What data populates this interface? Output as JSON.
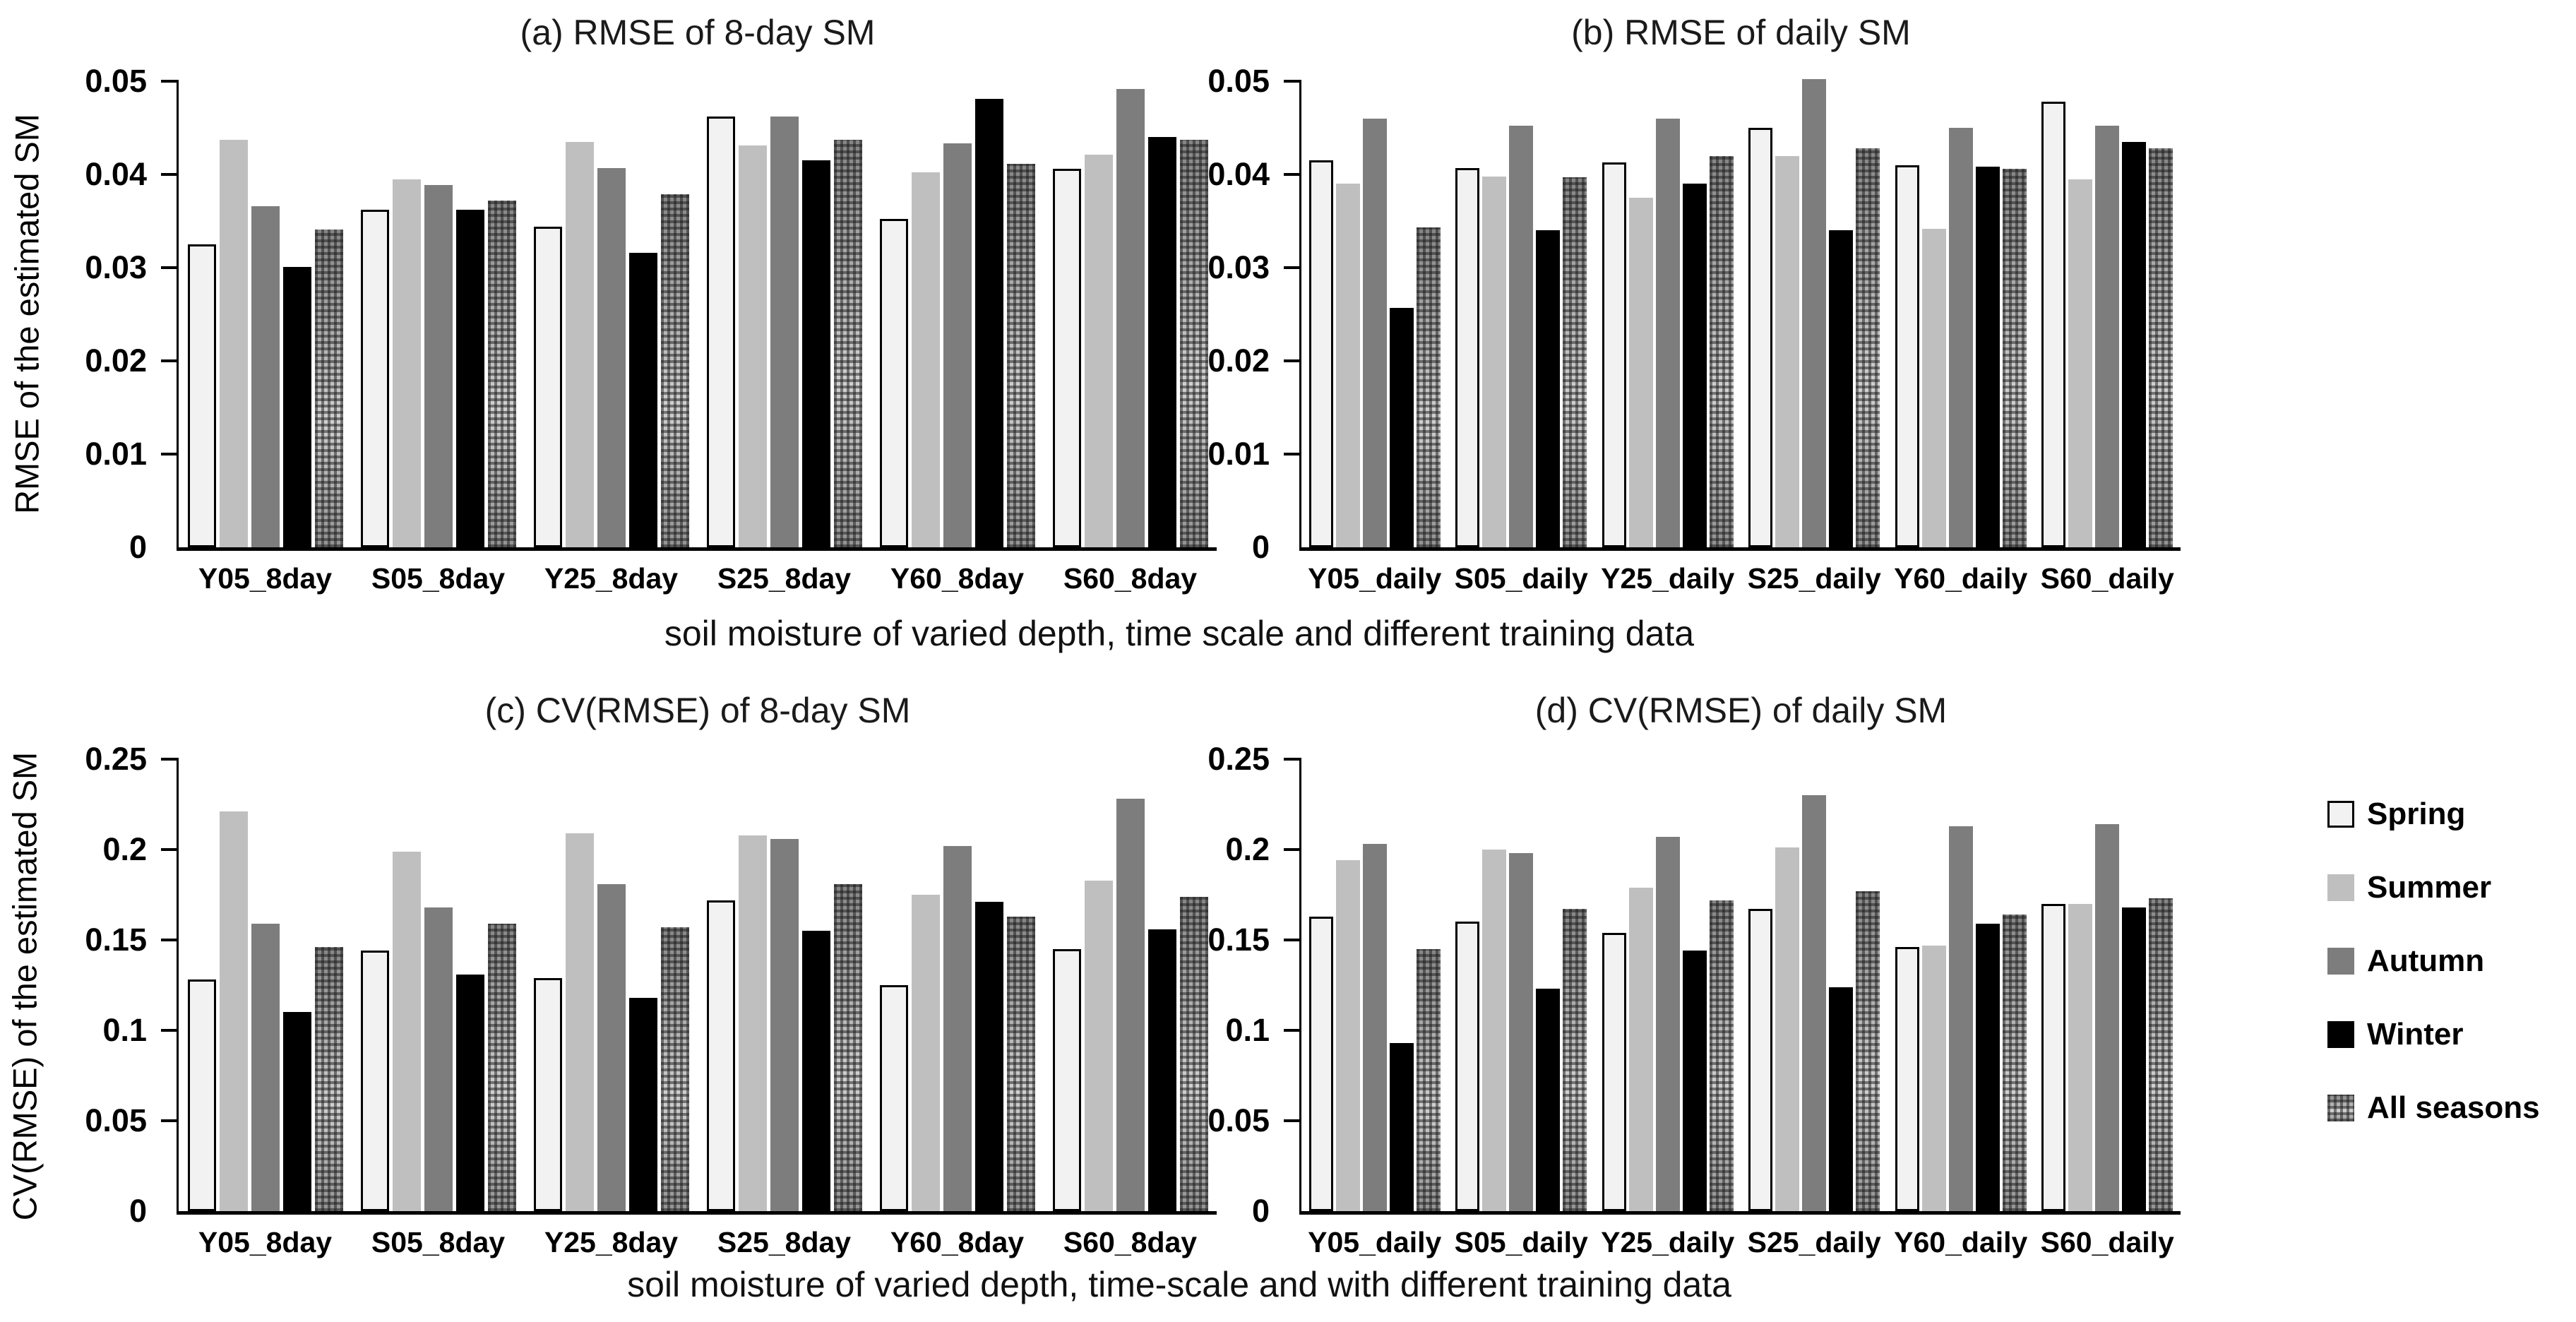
{
  "figure": {
    "top_caption": "soil moisture of varied depth, time scale and different training data",
    "bottom_caption": "soil moisture of varied depth,  time-scale and with different training data"
  },
  "legend": {
    "position": "right",
    "items": [
      {
        "label": "Spring",
        "style": "spring",
        "color": "#f2f2f2"
      },
      {
        "label": "Summer",
        "style": "summer",
        "color": "#bfbfbf"
      },
      {
        "label": "Autumn",
        "style": "autumn",
        "color": "#7d7d7d"
      },
      {
        "label": "Winter",
        "style": "winter",
        "color": "#000000"
      },
      {
        "label": "All seasons",
        "style": "allseasons",
        "color": "#9a9a9a-checkered"
      }
    ]
  },
  "chart_data": [
    {
      "id": "a",
      "type": "bar",
      "title": "(a)  RMSE of 8-day SM",
      "ylabel": "RMSE of the estimated SM",
      "xlabel": "",
      "ylim": [
        0,
        0.05
      ],
      "grid": false,
      "yticks": [
        "0.05",
        "0.04",
        "0.03",
        "0.02",
        "0.01",
        "0"
      ],
      "categories": [
        "Y05_8day",
        "S05_8day",
        "Y25_8day",
        "S25_8day",
        "Y60_8day",
        "S60_8day"
      ],
      "series": [
        {
          "name": "Spring",
          "values": [
            0.0325,
            0.0362,
            0.0344,
            0.0462,
            0.0352,
            0.0406
          ]
        },
        {
          "name": "Summer",
          "values": [
            0.0437,
            0.0395,
            0.0435,
            0.0431,
            0.0402,
            0.0421
          ]
        },
        {
          "name": "Autumn",
          "values": [
            0.0366,
            0.0389,
            0.0407,
            0.0462,
            0.0433,
            0.0492
          ]
        },
        {
          "name": "Winter",
          "values": [
            0.0301,
            0.0362,
            0.0316,
            0.0415,
            0.0481,
            0.044
          ]
        },
        {
          "name": "All seasons",
          "values": [
            0.0341,
            0.0372,
            0.0379,
            0.0437,
            0.0411,
            0.0437
          ]
        }
      ]
    },
    {
      "id": "b",
      "type": "bar",
      "title": "(b)  RMSE of daily SM",
      "ylabel": "",
      "xlabel": "",
      "ylim": [
        0,
        0.05
      ],
      "grid": false,
      "yticks": [
        "0.05",
        "0.04",
        "0.03",
        "0.02",
        "0.01",
        "0"
      ],
      "categories": [
        "Y05_daily",
        "S05_daily",
        "Y25_daily",
        "S25_daily",
        "Y60_daily",
        "S60_daily"
      ],
      "series": [
        {
          "name": "Spring",
          "values": [
            0.0415,
            0.0407,
            0.0413,
            0.045,
            0.041,
            0.0478
          ]
        },
        {
          "name": "Summer",
          "values": [
            0.039,
            0.0398,
            0.0375,
            0.042,
            0.0342,
            0.0395
          ]
        },
        {
          "name": "Autumn",
          "values": [
            0.046,
            0.0452,
            0.046,
            0.0502,
            0.045,
            0.0452
          ]
        },
        {
          "name": "Winter",
          "values": [
            0.0257,
            0.034,
            0.039,
            0.034,
            0.0408,
            0.0435
          ]
        },
        {
          "name": "All seasons",
          "values": [
            0.0343,
            0.0397,
            0.042,
            0.0428,
            0.0406,
            0.0428
          ]
        }
      ]
    },
    {
      "id": "c",
      "type": "bar",
      "title": "(c)  CV(RMSE) of 8-day SM",
      "ylabel": "CV(RMSE) of the estimated SM",
      "xlabel": "",
      "ylim": [
        0,
        0.25
      ],
      "grid": false,
      "yticks": [
        "0.25",
        "0.2",
        "0.15",
        "0.1",
        "0.05",
        "0"
      ],
      "categories": [
        "Y05_8day",
        "S05_8day",
        "Y25_8day",
        "S25_8day",
        "Y60_8day",
        "S60_8day"
      ],
      "series": [
        {
          "name": "Spring",
          "values": [
            0.128,
            0.144,
            0.129,
            0.172,
            0.125,
            0.145
          ]
        },
        {
          "name": "Summer",
          "values": [
            0.221,
            0.199,
            0.209,
            0.208,
            0.175,
            0.183
          ]
        },
        {
          "name": "Autumn",
          "values": [
            0.159,
            0.168,
            0.181,
            0.206,
            0.202,
            0.228
          ]
        },
        {
          "name": "Winter",
          "values": [
            0.11,
            0.131,
            0.118,
            0.155,
            0.171,
            0.156
          ]
        },
        {
          "name": "All seasons",
          "values": [
            0.146,
            0.159,
            0.157,
            0.181,
            0.163,
            0.174
          ]
        }
      ]
    },
    {
      "id": "d",
      "type": "bar",
      "title": "(d)  CV(RMSE) of daily SM",
      "ylabel": "",
      "xlabel": "",
      "ylim": [
        0,
        0.25
      ],
      "grid": false,
      "yticks": [
        "0.25",
        "0.2",
        "0.15",
        "0.1",
        "0.05",
        "0"
      ],
      "categories": [
        "Y05_daily",
        "S05_daily",
        "Y25_daily",
        "S25_daily",
        "Y60_daily",
        "S60_daily"
      ],
      "series": [
        {
          "name": "Spring",
          "values": [
            0.163,
            0.16,
            0.154,
            0.167,
            0.146,
            0.17
          ]
        },
        {
          "name": "Summer",
          "values": [
            0.194,
            0.2,
            0.179,
            0.201,
            0.147,
            0.17
          ]
        },
        {
          "name": "Autumn",
          "values": [
            0.203,
            0.198,
            0.207,
            0.23,
            0.213,
            0.214
          ]
        },
        {
          "name": "Winter",
          "values": [
            0.093,
            0.123,
            0.144,
            0.124,
            0.159,
            0.168
          ]
        },
        {
          "name": "All seasons",
          "values": [
            0.145,
            0.167,
            0.172,
            0.177,
            0.164,
            0.173
          ]
        }
      ]
    }
  ]
}
